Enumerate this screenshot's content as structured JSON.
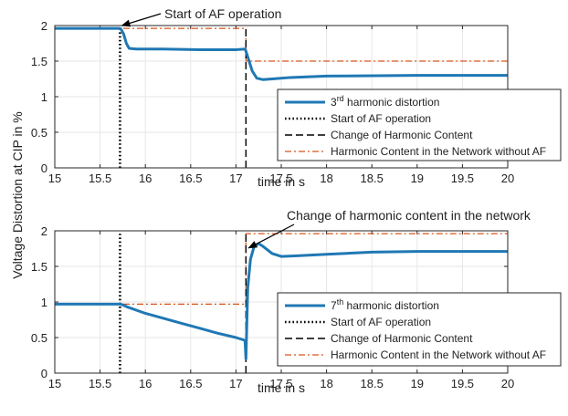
{
  "shared_ylabel": "Voltage Distortion at CIP in %",
  "colors": {
    "measured": "#1f78b4",
    "nominal": "#d95319",
    "marker": "#000000",
    "grid": "#e6e6e6",
    "axis": "#262626"
  },
  "chart_data": [
    {
      "type": "line",
      "panel": "top",
      "title": "",
      "xlabel": "time in s",
      "ylabel": "",
      "xlim": [
        15,
        20
      ],
      "ylim": [
        0,
        2
      ],
      "xticks": [
        "15",
        "15.5",
        "16",
        "16.5",
        "17",
        "17.5",
        "18",
        "18.5",
        "19",
        "19.5",
        "20"
      ],
      "yticks": [
        "0",
        "0.5",
        "1",
        "1.5",
        "2"
      ],
      "grid": true,
      "legend_position": "lower-right",
      "annotation": {
        "text": "Start of AF operation",
        "target_x": 15.72,
        "target_y": 1.96
      },
      "series": [
        {
          "name": "3rd harmonic distortion",
          "name_base": "3",
          "name_sup": "rd",
          "name_rest": " harmonic distortion",
          "style": "solid",
          "points": [
            [
              15,
              1.96
            ],
            [
              15.72,
              1.96
            ],
            [
              15.73,
              1.95
            ],
            [
              15.76,
              1.88
            ],
            [
              15.79,
              1.75
            ],
            [
              15.82,
              1.68
            ],
            [
              15.9,
              1.67
            ],
            [
              16.2,
              1.67
            ],
            [
              16.6,
              1.66
            ],
            [
              17.0,
              1.66
            ],
            [
              17.1,
              1.67
            ],
            [
              17.11,
              1.64
            ],
            [
              17.14,
              1.52
            ],
            [
              17.18,
              1.36
            ],
            [
              17.23,
              1.26
            ],
            [
              17.3,
              1.24
            ],
            [
              17.4,
              1.25
            ],
            [
              17.6,
              1.27
            ],
            [
              18.0,
              1.29
            ],
            [
              19.0,
              1.3
            ],
            [
              20.0,
              1.3
            ]
          ]
        },
        {
          "name": "Start of AF operation",
          "style": "dotted",
          "points": [
            [
              15.72,
              0
            ],
            [
              15.72,
              1.96
            ]
          ]
        },
        {
          "name": "Change of Harmonic Content",
          "style": "dashed",
          "points": [
            [
              17.11,
              0
            ],
            [
              17.11,
              1.96
            ]
          ]
        },
        {
          "name": "Harmonic Content in the Network without AF",
          "style": "dashdot",
          "points": [
            [
              15,
              1.96
            ],
            [
              17.11,
              1.96
            ],
            [
              17.11,
              1.5
            ],
            [
              20,
              1.5
            ]
          ]
        }
      ]
    },
    {
      "type": "line",
      "panel": "bottom",
      "title": "",
      "xlabel": "time in s",
      "ylabel": "",
      "xlim": [
        15,
        20
      ],
      "ylim": [
        0,
        2
      ],
      "xticks": [
        "15",
        "15.5",
        "16",
        "16.5",
        "17",
        "17.5",
        "18",
        "18.5",
        "19",
        "19.5",
        "20"
      ],
      "yticks": [
        "0",
        "0.5",
        "1",
        "1.5",
        "2"
      ],
      "grid": true,
      "legend_position": "lower-right",
      "annotation": {
        "text": "Change of harmonic content in the network",
        "target_x": 17.12,
        "target_y": 1.72
      },
      "series": [
        {
          "name": "7th harmonic distortion",
          "name_base": "7",
          "name_sup": "th",
          "name_rest": " harmonic distortion",
          "style": "solid",
          "points": [
            [
              15,
              0.97
            ],
            [
              15.72,
              0.97
            ],
            [
              15.75,
              0.96
            ],
            [
              15.8,
              0.93
            ],
            [
              16.0,
              0.84
            ],
            [
              16.2,
              0.77
            ],
            [
              16.4,
              0.7
            ],
            [
              16.6,
              0.63
            ],
            [
              16.8,
              0.56
            ],
            [
              17.0,
              0.5
            ],
            [
              17.1,
              0.46
            ],
            [
              17.11,
              0.2
            ],
            [
              17.13,
              1.2
            ],
            [
              17.16,
              1.6
            ],
            [
              17.2,
              1.78
            ],
            [
              17.25,
              1.82
            ],
            [
              17.3,
              1.78
            ],
            [
              17.4,
              1.68
            ],
            [
              17.5,
              1.64
            ],
            [
              17.7,
              1.65
            ],
            [
              18.0,
              1.67
            ],
            [
              18.5,
              1.7
            ],
            [
              19.0,
              1.71
            ],
            [
              19.5,
              1.71
            ],
            [
              20.0,
              1.71
            ]
          ]
        },
        {
          "name": "Start of AF operation",
          "style": "dotted",
          "points": [
            [
              15.72,
              0
            ],
            [
              15.72,
              1.96
            ]
          ]
        },
        {
          "name": "Change of Harmonic Content",
          "style": "dashed",
          "points": [
            [
              17.11,
              0
            ],
            [
              17.11,
              1.96
            ]
          ]
        },
        {
          "name": "Harmonic Content in the Network without AF",
          "style": "dashdot",
          "points": [
            [
              15,
              0.97
            ],
            [
              17.11,
              0.97
            ],
            [
              17.11,
              1.96
            ],
            [
              20,
              1.96
            ]
          ]
        }
      ]
    }
  ]
}
